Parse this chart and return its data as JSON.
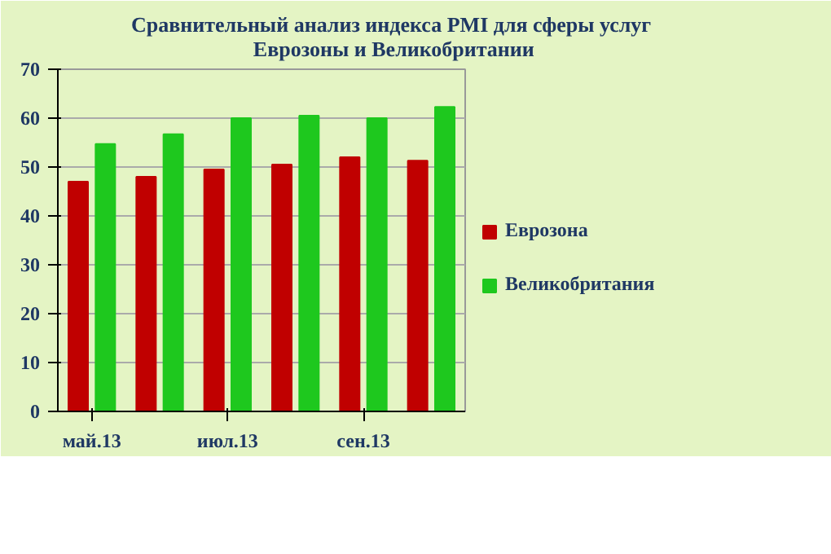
{
  "chart_data": {
    "type": "bar",
    "title": "Сравнительный анализ индекса  PMI для сферы услуг\nЕврозоны и Великобритании",
    "categories": [
      "май.13",
      null,
      "июл.13",
      null,
      "сен.13",
      null
    ],
    "series": [
      {
        "name": "Еврозона",
        "color": "#c00000",
        "values": [
          47,
          48,
          49.5,
          50.5,
          52,
          51.3
        ]
      },
      {
        "name": "Великобритания",
        "color": "#1ec81e",
        "values": [
          54.7,
          56.7,
          60,
          60.5,
          60,
          62.3
        ]
      }
    ],
    "ylim": [
      0,
      70
    ],
    "yticks": [
      0,
      10,
      20,
      30,
      40,
      50,
      60,
      70
    ],
    "grid": "y",
    "legend": "right"
  }
}
